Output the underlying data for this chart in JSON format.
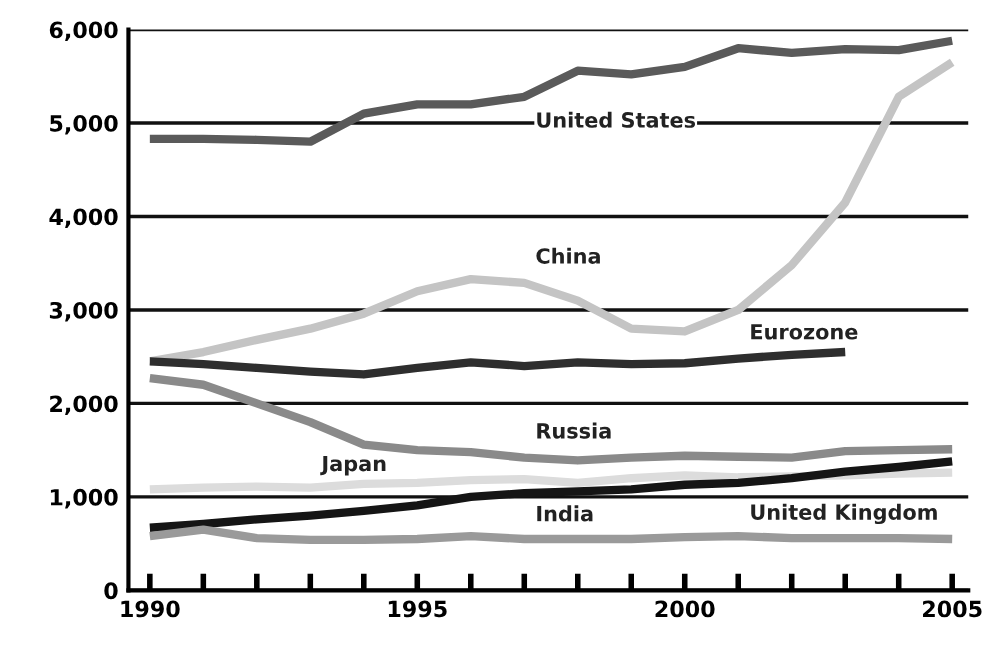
{
  "chart_data": {
    "type": "line",
    "x": [
      1990,
      1991,
      1992,
      1993,
      1994,
      1995,
      1996,
      1997,
      1998,
      1999,
      2000,
      2001,
      2002,
      2003,
      2004,
      2005
    ],
    "series": [
      {
        "name": "United States",
        "color": "#5a5a5a",
        "values": [
          4830,
          4830,
          4820,
          4800,
          5100,
          5200,
          5200,
          5280,
          5560,
          5520,
          5600,
          5800,
          5750,
          5790,
          5780,
          5880
        ]
      },
      {
        "name": "China",
        "color": "#c4c4c4",
        "values": [
          2450,
          2550,
          2680,
          2800,
          2960,
          3200,
          3330,
          3290,
          3100,
          2800,
          2770,
          3000,
          3480,
          4150,
          5280,
          5650
        ]
      },
      {
        "name": "Eurozone",
        "color": "#2e2e2e",
        "values": [
          2450,
          2420,
          2380,
          2340,
          2310,
          2380,
          2440,
          2400,
          2440,
          2420,
          2430,
          2480,
          2520,
          2550,
          null,
          null
        ]
      },
      {
        "name": "Russia",
        "color": "#8a8a8a",
        "values": [
          2270,
          2200,
          2000,
          1800,
          1560,
          1500,
          1480,
          1420,
          1390,
          1420,
          1440,
          1430,
          1420,
          1490,
          1500,
          1510
        ]
      },
      {
        "name": "Japan",
        "color": "#dcdcdc",
        "values": [
          1080,
          1100,
          1110,
          1100,
          1140,
          1150,
          1180,
          1190,
          1150,
          1200,
          1230,
          1210,
          1220,
          1230,
          1250,
          1260
        ]
      },
      {
        "name": "India",
        "color": "#151515",
        "values": [
          670,
          710,
          760,
          800,
          850,
          910,
          1000,
          1040,
          1060,
          1080,
          1130,
          1150,
          1200,
          1270,
          1320,
          1380
        ]
      },
      {
        "name": "United Kingdom",
        "color": "#9a9a9a",
        "values": [
          580,
          650,
          560,
          540,
          540,
          550,
          580,
          550,
          550,
          550,
          570,
          580,
          560,
          560,
          560,
          550
        ]
      }
    ],
    "xlim": [
      1989.6,
      2005.3
    ],
    "xticks": [
      1990,
      {
        "value": 1991,
        "label": null
      },
      {
        "value": 1992,
        "label": null
      },
      {
        "value": 1993,
        "label": null
      },
      {
        "value": 1994,
        "label": null
      },
      1995,
      {
        "value": 1996,
        "label": null
      },
      {
        "value": 1997,
        "label": null
      },
      {
        "value": 1998,
        "label": null
      },
      {
        "value": 1999,
        "label": null
      },
      2000,
      {
        "value": 2001,
        "label": null
      },
      {
        "value": 2002,
        "label": null
      },
      {
        "value": 2003,
        "label": null
      },
      {
        "value": 2004,
        "label": null
      },
      2005
    ],
    "ylim": [
      0,
      6000
    ],
    "yticks": [
      0,
      {
        "value": 1000,
        "label": "1,000"
      },
      {
        "value": 2000,
        "label": "2,000"
      },
      {
        "value": 3000,
        "label": "3,000"
      },
      {
        "value": 4000,
        "label": "4,000"
      },
      {
        "value": 5000,
        "label": "5,000"
      },
      {
        "value": 6000,
        "label": "6,000"
      }
    ],
    "grid": "y",
    "legend": false,
    "marker": "none",
    "line_style": "solid"
  }
}
